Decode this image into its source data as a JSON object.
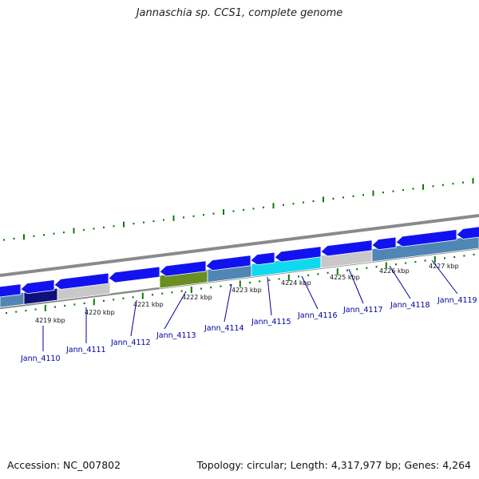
{
  "title": "Jannaschia sp. CCS1, complete genome",
  "accession_label": "Accession: NC_007802",
  "topology_label": "Topology: circular; Length: 4,317,977 bp; Genes: 4,264",
  "scale_labels": [
    "4219 kbp",
    "4220 kbp",
    "4221 kbp",
    "4222 kbp",
    "4223 kbp",
    "4224 kbp",
    "4225 kbp",
    "4226 kbp",
    "4227 kbp"
  ],
  "gene_labels": [
    "Jann_4110",
    "Jann_4111",
    "Jann_4112",
    "Jann_4113",
    "Jann_4114",
    "Jann_4115",
    "Jann_4116",
    "Jann_4117",
    "Jann_4118",
    "Jann_4119"
  ],
  "colors": {
    "tick_green": "#0a7a0a",
    "gene_blue": "#1212f0",
    "gene_olive": "#6b8e23",
    "gene_cyan": "#10d8ee",
    "gene_gray": "#c8c8c8",
    "steel_blue": "#4f86b4",
    "dark_navy": "#10107a",
    "backbone_gray": "#8a8a8a",
    "label_blue": "#00009c"
  }
}
